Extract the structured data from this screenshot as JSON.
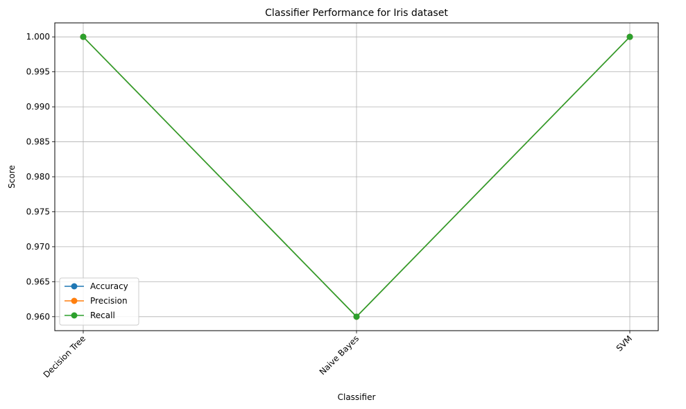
{
  "chart_data": {
    "type": "line",
    "title": "Classifier Performance for Iris dataset",
    "xlabel": "Classifier",
    "ylabel": "Score",
    "categories": [
      "Decision Tree",
      "Naive Bayes",
      "SVM"
    ],
    "series": [
      {
        "name": "Accuracy",
        "values": [
          1.0,
          0.96,
          1.0
        ],
        "color": "#1f77b4"
      },
      {
        "name": "Precision",
        "values": [
          1.0,
          0.96,
          1.0
        ],
        "color": "#ff7f0e"
      },
      {
        "name": "Recall",
        "values": [
          1.0,
          0.96,
          1.0
        ],
        "color": "#2ca02c"
      }
    ],
    "ylim": [
      0.958,
      1.002
    ],
    "yticks": [
      "0.960",
      "0.965",
      "0.970",
      "0.975",
      "0.980",
      "0.985",
      "0.990",
      "0.995",
      "1.000"
    ],
    "grid": true,
    "legend_position": "lower-left",
    "x_tick_rotation": "45 degrees"
  }
}
